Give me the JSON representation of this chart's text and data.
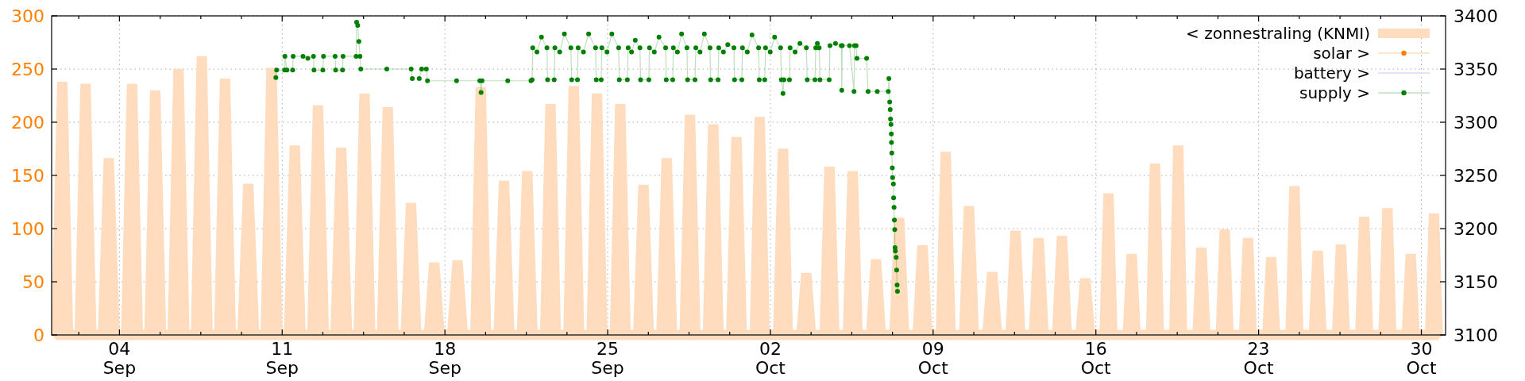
{
  "chart_data": {
    "type": "line",
    "xlim": [
      "--09-01T02:00",
      "--10-31T01:00"
    ],
    "xticks": [
      {
        "value": "--09-02T06:00",
        "label": null
      },
      {
        "value": "--09-04",
        "label": "04\nSep"
      },
      {
        "value": "--09-05T18:00",
        "label": null
      },
      {
        "value": "--09-07T12:00",
        "label": null
      },
      {
        "value": "--09-09T06:00",
        "label": null
      },
      {
        "value": "--09-11",
        "label": "11\nSep"
      },
      {
        "value": "--09-12T18:00",
        "label": null
      },
      {
        "value": "--09-14T12:00",
        "label": null
      },
      {
        "value": "--09-16T06:00",
        "label": null
      },
      {
        "value": "--09-18",
        "label": "18\nSep"
      },
      {
        "value": "--09-19T18:00",
        "label": null
      },
      {
        "value": "--09-21T12:00",
        "label": null
      },
      {
        "value": "--09-23T06:00",
        "label": null
      },
      {
        "value": "--09-25",
        "label": "25\nSep"
      },
      {
        "value": "--09-26T18:00",
        "label": null
      },
      {
        "value": "--09-28T12:00",
        "label": null
      },
      {
        "value": "--09-30T06:00",
        "label": null
      },
      {
        "value": "--10-02",
        "label": "02\nOct"
      },
      {
        "value": "--10-03T18:00",
        "label": null
      },
      {
        "value": "--10-05T12:00",
        "label": null
      },
      {
        "value": "--10-07T06:00",
        "label": null
      },
      {
        "value": "--10-09",
        "label": "09\nOct"
      },
      {
        "value": "--10-10T18:00",
        "label": null
      },
      {
        "value": "--10-12T12:00",
        "label": null
      },
      {
        "value": "--10-14T06:00",
        "label": null
      },
      {
        "value": "--10-16",
        "label": "16\nOct"
      },
      {
        "value": "--10-17T18:00",
        "label": null
      },
      {
        "value": "--10-19T12:00",
        "label": null
      },
      {
        "value": "--10-21T06:00",
        "label": null
      },
      {
        "value": "--10-23",
        "label": "23\nOct"
      },
      {
        "value": "--10-24T18:00",
        "label": null
      },
      {
        "value": "--10-26T12:00",
        "label": null
      },
      {
        "value": "--10-28T06:00",
        "label": null
      },
      {
        "value": "--10-30",
        "label": "30\nOct"
      }
    ],
    "ylim": [
      0,
      300
    ],
    "yticks": [
      0,
      50,
      100,
      150,
      200,
      250,
      300
    ],
    "y2lim": [
      3100,
      3400
    ],
    "y2ticks": [
      3100,
      3150,
      3200,
      3250,
      3300,
      3350,
      3400
    ],
    "grid": true,
    "legend": "top right",
    "series": [
      {
        "name": "< zonnestraling (KNMI)",
        "type": "area",
        "color": "#ffdcbd",
        "x": [
          "--09-01T07:00",
          "--09-01T13:00",
          "--09-01T19:00",
          "--09-02T07:00",
          "--09-02T13:00",
          "--09-02T19:00",
          "--09-03T07:00",
          "--09-03T13:00",
          "--09-03T19:00",
          "--09-04T07:00",
          "--09-04T13:00",
          "--09-04T19:00",
          "--09-05T07:00",
          "--09-05T13:00",
          "--09-05T19:00",
          "--09-06T07:00",
          "--09-06T13:00",
          "--09-06T19:00",
          "--09-07T07:00",
          "--09-07T13:00",
          "--09-07T19:00",
          "--09-08T07:00",
          "--09-08T13:00",
          "--09-08T19:00",
          "--09-09T07:00",
          "--09-09T13:00",
          "--09-09T19:00",
          "--09-10T07:00",
          "--09-10T13:00",
          "--09-10T19:00",
          "--09-11T07:00",
          "--09-11T13:00",
          "--09-11T19:00",
          "--09-12T07:00",
          "--09-12T13:00",
          "--09-12T19:00",
          "--09-13T07:00",
          "--09-13T13:00",
          "--09-13T19:00",
          "--09-14T07:00",
          "--09-14T13:00",
          "--09-14T19:00",
          "--09-15T07:00",
          "--09-15T13:00",
          "--09-15T19:00",
          "--09-16T07:30",
          "--09-16T13:00",
          "--09-16T18:30",
          "--09-17T07:30",
          "--09-17T13:00",
          "--09-17T18:30",
          "--09-18T07:30",
          "--09-18T13:00",
          "--09-18T18:30",
          "--09-19T07:30",
          "--09-19T13:00",
          "--09-19T18:30",
          "--09-20T07:30",
          "--09-20T13:00",
          "--09-20T18:30",
          "--09-21T07:30",
          "--09-21T13:00",
          "--09-21T18:30",
          "--09-22T07:30",
          "--09-22T13:00",
          "--09-22T18:30",
          "--09-23T07:30",
          "--09-23T13:00",
          "--09-23T18:30",
          "--09-24T07:30",
          "--09-24T13:00",
          "--09-24T18:30",
          "--09-25T07:30",
          "--09-25T13:00",
          "--09-25T18:30",
          "--09-26T07:30",
          "--09-26T13:00",
          "--09-26T18:30",
          "--09-27T07:30",
          "--09-27T13:00",
          "--09-27T18:30",
          "--09-28T07:30",
          "--09-28T13:00",
          "--09-28T18:30",
          "--09-29T07:30",
          "--09-29T13:00",
          "--09-29T18:30",
          "--09-30T07:30",
          "--09-30T13:00",
          "--09-30T18:30",
          "--10-01T08:00",
          "--10-01T13:00",
          "--10-01T18:00",
          "--10-02T08:00",
          "--10-02T13:00",
          "--10-02T18:00",
          "--10-03T08:00",
          "--10-03T13:00",
          "--10-03T18:00",
          "--10-04T08:00",
          "--10-04T13:00",
          "--10-04T18:00",
          "--10-05T08:00",
          "--10-05T13:00",
          "--10-05T18:00",
          "--10-06T08:00",
          "--10-06T13:00",
          "--10-06T18:00",
          "--10-07T08:00",
          "--10-07T13:00",
          "--10-07T18:00",
          "--10-08T08:00",
          "--10-08T13:00",
          "--10-08T18:00",
          "--10-09T08:00",
          "--10-09T13:00",
          "--10-09T18:00",
          "--10-10T08:00",
          "--10-10T13:00",
          "--10-10T18:00",
          "--10-11T08:00",
          "--10-11T13:00",
          "--10-11T18:00",
          "--10-12T08:00",
          "--10-12T13:00",
          "--10-12T18:00",
          "--10-13T08:00",
          "--10-13T13:00",
          "--10-13T18:00",
          "--10-14T08:00",
          "--10-14T13:00",
          "--10-14T18:00",
          "--10-15T08:00",
          "--10-15T13:00",
          "--10-15T18:00",
          "--10-16T09:00",
          "--10-16T13:00",
          "--10-16T17:00",
          "--10-17T09:00",
          "--10-17T13:00",
          "--10-17T17:00",
          "--10-18T09:00",
          "--10-18T13:00",
          "--10-18T17:00",
          "--10-19T09:00",
          "--10-19T13:00",
          "--10-19T17:00",
          "--10-20T09:00",
          "--10-20T13:00",
          "--10-20T17:00",
          "--10-21T09:00",
          "--10-21T13:00",
          "--10-21T17:00",
          "--10-22T09:00",
          "--10-22T13:00",
          "--10-22T17:00",
          "--10-23T09:00",
          "--10-23T13:00",
          "--10-23T17:00",
          "--10-24T09:00",
          "--10-24T13:00",
          "--10-24T17:00",
          "--10-25T09:00",
          "--10-25T13:00",
          "--10-25T17:00",
          "--10-26T09:00",
          "--10-26T13:00",
          "--10-26T17:00",
          "--10-27T09:00",
          "--10-27T13:00",
          "--10-27T17:00",
          "--10-28T09:00",
          "--10-28T13:00",
          "--10-28T17:00",
          "--10-29T09:00",
          "--10-29T13:00",
          "--10-29T17:00",
          "--10-30T09:00",
          "--10-30T13:00",
          "--10-30T17:00"
        ],
        "values": [
          0,
          238,
          0,
          0,
          236,
          0,
          0,
          166,
          0,
          0,
          236,
          0,
          0,
          230,
          0,
          0,
          250,
          0,
          0,
          262,
          0,
          0,
          241,
          0,
          0,
          142,
          0,
          0,
          251,
          0,
          0,
          178,
          0,
          0,
          216,
          0,
          0,
          176,
          0,
          0,
          227,
          0,
          0,
          214,
          0,
          0,
          124,
          0,
          0,
          68,
          0,
          0,
          70,
          0,
          0,
          233,
          0,
          0,
          145,
          0,
          0,
          154,
          0,
          0,
          217,
          0,
          0,
          234,
          0,
          0,
          227,
          0,
          0,
          217,
          0,
          0,
          141,
          0,
          0,
          166,
          0,
          0,
          207,
          0,
          0,
          198,
          0,
          0,
          186,
          0,
          0,
          205,
          0,
          0,
          175,
          0,
          0,
          58,
          0,
          0,
          158,
          0,
          0,
          154,
          0,
          0,
          71,
          0,
          0,
          110,
          0,
          0,
          84,
          0,
          0,
          172,
          0,
          0,
          121,
          0,
          0,
          59,
          0,
          0,
          98,
          0,
          0,
          91,
          0,
          0,
          93,
          0,
          0,
          53,
          0,
          0,
          133,
          0,
          0,
          76,
          0,
          0,
          161,
          0,
          0,
          178,
          0,
          0,
          82,
          0,
          0,
          99,
          0,
          0,
          91,
          0,
          0,
          73,
          0,
          0,
          140,
          0,
          0,
          79,
          0,
          0,
          85,
          0,
          0,
          111,
          0,
          0,
          119,
          0,
          0,
          76,
          0,
          0,
          114,
          0
        ]
      },
      {
        "name": "solar >",
        "color": "#ff8000",
        "axis": "y2",
        "marker": "circle"
      },
      {
        "name": "battery >",
        "color": "#d8d8f8",
        "axis": "y2"
      },
      {
        "name": "supply >",
        "color": "#008000",
        "axis": "y2",
        "marker": "circle",
        "x": [
          "--09-10T17:30",
          "--09-10T18:15",
          "--09-11T02:30",
          "--09-11T02:50",
          "--09-11T04:50",
          "--09-11T10:50",
          "--09-11T11:20",
          "--09-11T21:30",
          "--09-12T02:30",
          "--09-12T08:20",
          "--09-12T08:50",
          "--09-12T18:00",
          "--09-12T18:40",
          "--09-13T06:40",
          "--09-13T07:10",
          "--09-13T14:20",
          "--09-13T14:50",
          "--09-14T04:20",
          "--09-14T04:50",
          "--09-14T06:00",
          "--09-14T07:10",
          "--09-14T08:20",
          "--09-14T09:10",
          "--09-15T12:00",
          "--09-16T13:10",
          "--09-16T14:20",
          "--09-16T21:30",
          "--09-17T00:00",
          "--09-17T04:50",
          "--09-17T06:00",
          "--09-18T12:00",
          "--09-19T12:00",
          "--09-19T13:20",
          "--09-19T14:20",
          "--09-20T16:50",
          "--09-21T16:50",
          "--09-21T18:00",
          "--09-21T18:40",
          "--09-21T23:00",
          "--09-22T03:40",
          "--09-22T09:20",
          "--09-22T10:00",
          "--09-22T16:50",
          "--09-22T17:30",
          "--09-22T22:30",
          "--09-23T03:20",
          "--09-23T10:00",
          "--09-23T10:50",
          "--09-23T16:50",
          "--09-23T17:30",
          "--09-23T23:00",
          "--09-24T04:20",
          "--09-24T11:30",
          "--09-24T12:15",
          "--09-24T17:20",
          "--09-24T18:00",
          "--09-24T23:20",
          "--09-25T04:20",
          "--09-25T11:20",
          "--09-25T12:00",
          "--09-25T20:20",
          "--09-25T21:10",
          "--09-26T00:40",
          "--09-26T04:30",
          "--09-26T09:20",
          "--09-26T10:00",
          "--09-26T18:30",
          "--09-26T19:10",
          "--09-27T00:10",
          "--09-27T05:00",
          "--09-27T11:50",
          "--09-27T12:30",
          "--09-27T19:10",
          "--09-27T19:50",
          "--09-28T00:00",
          "--09-28T04:20",
          "--09-28T09:50",
          "--09-28T10:30",
          "--09-28T18:10",
          "--09-28T19:00",
          "--09-28T23:20",
          "--09-29T03:50",
          "--09-29T09:40",
          "--09-29T10:20",
          "--09-29T18:00",
          "--09-29T18:40",
          "--09-29T23:30",
          "--09-30T04:00",
          "--09-30T10:20",
          "--09-30T11:00",
          "--09-30T18:30",
          "--09-30T19:10",
          "--10-01T00:10",
          "--10-01T05:00",
          "--10-01T11:50",
          "--10-01T12:30",
          "--10-01T18:10",
          "--10-01T19:00",
          "--10-01T23:50",
          "--10-02T04:20",
          "--10-02T10:30",
          "--10-02T11:20",
          "--10-02T13:00",
          "--10-02T14:00",
          "--10-02T19:40",
          "--10-02T20:20",
          "--10-03T01:30",
          "--10-03T06:30",
          "--10-03T13:10",
          "--10-03T14:00",
          "--10-03T22:00",
          "--10-03T22:50",
          "--10-04T00:30",
          "--10-04T02:20",
          "--10-04T03:10",
          "--10-04T12:40",
          "--10-04T13:30",
          "--10-04T19:10",
          "--10-05T01:10",
          "--10-05T01:40",
          "--10-05T02:10",
          "--10-05T09:40",
          "--10-05T14:20",
          "--10-05T14:50",
          "--10-05T16:30",
          "--10-05T17:20",
          "--10-06T03:20",
          "--10-06T04:50",
          "--10-06T14:20",
          "--10-07T01:40",
          "--10-07T02:20",
          "--10-07T03:10",
          "--10-07T03:40",
          "--10-07T04:00",
          "--10-07T04:30",
          "--10-07T04:50",
          "--10-07T05:00",
          "--10-07T05:20",
          "--10-07T05:50",
          "--10-07T06:10",
          "--10-07T07:00",
          "--10-07T07:10",
          "--10-07T07:40",
          "--10-07T08:00",
          "--10-07T08:20",
          "--10-07T08:40",
          "--10-07T09:00",
          "--10-07T09:50",
          "--10-07T10:20",
          "--10-07T10:50",
          "--10-07T11:10"
        ],
        "values": [
          3342,
          3349,
          3349,
          3362,
          3349,
          3349,
          3362,
          3362,
          3360,
          3362,
          3349,
          3349,
          3362,
          3362,
          3349,
          3349,
          3362,
          3362,
          3394,
          3391,
          3376,
          3362,
          3350,
          3350,
          3350,
          3341,
          3341,
          3350,
          3350,
          3339,
          3339,
          3339,
          3328,
          3339,
          3339,
          3339,
          3340,
          3370,
          3366,
          3380,
          3370,
          3340,
          3340,
          3370,
          3366,
          3383,
          3370,
          3340,
          3340,
          3370,
          3366,
          3383,
          3370,
          3340,
          3340,
          3370,
          3366,
          3383,
          3370,
          3340,
          3340,
          3370,
          3366,
          3377,
          3370,
          3340,
          3340,
          3370,
          3366,
          3380,
          3370,
          3340,
          3340,
          3370,
          3366,
          3383,
          3370,
          3340,
          3340,
          3370,
          3366,
          3383,
          3370,
          3340,
          3340,
          3370,
          3366,
          3373,
          3370,
          3340,
          3340,
          3370,
          3366,
          3382,
          3370,
          3340,
          3340,
          3370,
          3366,
          3380,
          3370,
          3340,
          3327,
          3340,
          3340,
          3370,
          3366,
          3374,
          3370,
          3340,
          3340,
          3370,
          3374,
          3370,
          3340,
          3340,
          3372,
          3374,
          3372,
          3330,
          3372,
          3372,
          3329,
          3372,
          3372,
          3360,
          3360,
          3329,
          3329,
          3329,
          3341,
          3319,
          3312,
          3303,
          3298,
          3289,
          3281,
          3271,
          3257,
          3248,
          3242,
          3229,
          3220,
          3208,
          3199,
          3182,
          3179,
          3173,
          3161,
          3147,
          3141
        ]
      }
    ]
  }
}
